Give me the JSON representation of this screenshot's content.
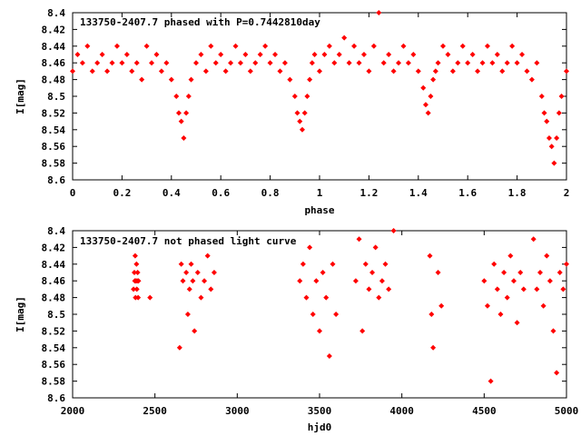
{
  "chart_data": [
    {
      "type": "scatter",
      "title": "133750-2407.7 phased with P=0.7442810day",
      "xlabel": "phase",
      "ylabel": "I[mag]",
      "xlim": [
        0,
        2
      ],
      "ylim": [
        8.6,
        8.4
      ],
      "y_inverted": true,
      "xticks": [
        "0",
        "0.2",
        "0.4",
        "0.6",
        "0.8",
        "1",
        "1.2",
        "1.4",
        "1.6",
        "1.8",
        "2"
      ],
      "yticks": [
        "8.4",
        "8.42",
        "8.44",
        "8.46",
        "8.48",
        "8.5",
        "8.52",
        "8.54",
        "8.56",
        "8.58",
        "8.6"
      ],
      "grid": false,
      "legend": "none",
      "color": "#ff0000",
      "marker": "diamond",
      "series": [
        {
          "x": [
            0.0,
            0.02,
            0.04,
            0.06,
            0.08,
            0.1,
            0.12,
            0.14,
            0.16,
            0.18,
            0.2,
            0.22,
            0.24,
            0.26,
            0.28,
            0.3,
            0.32,
            0.34,
            0.36,
            0.38,
            0.4,
            0.42,
            0.43,
            0.44,
            0.45,
            0.46,
            0.47,
            0.48,
            0.5,
            0.52,
            0.54,
            0.56,
            0.58,
            0.6,
            0.62,
            0.64,
            0.66,
            0.68,
            0.7,
            0.72,
            0.74,
            0.76,
            0.78,
            0.8,
            0.82,
            0.84,
            0.86,
            0.88,
            0.9,
            0.91,
            0.92,
            0.93,
            0.94,
            0.95,
            0.96,
            0.97,
            0.98,
            1.0,
            1.02,
            1.04,
            1.06,
            1.08,
            1.1,
            1.12,
            1.14,
            1.16,
            1.18,
            1.2,
            1.22,
            1.24,
            1.26,
            1.28,
            1.3,
            1.32,
            1.34,
            1.36,
            1.38,
            1.4,
            1.42,
            1.43,
            1.44,
            1.45,
            1.46,
            1.47,
            1.48,
            1.5,
            1.52,
            1.54,
            1.56,
            1.58,
            1.6,
            1.62,
            1.64,
            1.66,
            1.68,
            1.7,
            1.72,
            1.74,
            1.76,
            1.78,
            1.8,
            1.82,
            1.84,
            1.86,
            1.88,
            1.9,
            1.91,
            1.92,
            1.93,
            1.94,
            1.95,
            1.96,
            1.97,
            1.98,
            2.0
          ],
          "y": [
            8.47,
            8.45,
            8.46,
            8.44,
            8.47,
            8.46,
            8.45,
            8.47,
            8.46,
            8.44,
            8.46,
            8.45,
            8.47,
            8.46,
            8.48,
            8.44,
            8.46,
            8.45,
            8.47,
            8.46,
            8.48,
            8.5,
            8.52,
            8.53,
            8.55,
            8.52,
            8.5,
            8.48,
            8.46,
            8.45,
            8.47,
            8.44,
            8.46,
            8.45,
            8.47,
            8.46,
            8.44,
            8.46,
            8.45,
            8.47,
            8.46,
            8.45,
            8.44,
            8.46,
            8.45,
            8.47,
            8.46,
            8.48,
            8.5,
            8.52,
            8.53,
            8.54,
            8.52,
            8.5,
            8.48,
            8.46,
            8.45,
            8.47,
            8.45,
            8.44,
            8.46,
            8.45,
            8.43,
            8.46,
            8.44,
            8.46,
            8.45,
            8.47,
            8.44,
            8.4,
            8.46,
            8.45,
            8.47,
            8.46,
            8.44,
            8.46,
            8.45,
            8.47,
            8.49,
            8.51,
            8.52,
            8.5,
            8.48,
            8.47,
            8.46,
            8.44,
            8.45,
            8.47,
            8.46,
            8.44,
            8.46,
            8.45,
            8.47,
            8.46,
            8.44,
            8.46,
            8.45,
            8.47,
            8.46,
            8.44,
            8.46,
            8.45,
            8.47,
            8.48,
            8.46,
            8.5,
            8.52,
            8.53,
            8.55,
            8.56,
            8.58,
            8.55,
            8.52,
            8.5,
            8.47
          ]
        }
      ]
    },
    {
      "type": "scatter",
      "title": "133750-2407.7 not phased light curve",
      "xlabel": "hjd0",
      "ylabel": "I[mag]",
      "xlim": [
        2000,
        5000
      ],
      "ylim": [
        8.6,
        8.4
      ],
      "y_inverted": true,
      "xticks": [
        "2000",
        "2500",
        "3000",
        "3500",
        "4000",
        "4500",
        "5000"
      ],
      "yticks": [
        "8.4",
        "8.42",
        "8.44",
        "8.46",
        "8.48",
        "8.5",
        "8.52",
        "8.54",
        "8.56",
        "8.58",
        "8.6"
      ],
      "grid": false,
      "legend": "none",
      "color": "#ff0000",
      "marker": "diamond",
      "series": [
        {
          "x": [
            2370,
            2375,
            2378,
            2380,
            2382,
            2385,
            2388,
            2390,
            2392,
            2395,
            2398,
            2400,
            2470,
            2650,
            2660,
            2670,
            2690,
            2700,
            2710,
            2720,
            2730,
            2740,
            2760,
            2780,
            2800,
            2820,
            2840,
            2860,
            3380,
            3400,
            3420,
            3440,
            3460,
            3480,
            3500,
            3520,
            3540,
            3560,
            3580,
            3600,
            3720,
            3740,
            3760,
            3780,
            3800,
            3820,
            3840,
            3860,
            3880,
            3900,
            3920,
            3950,
            4170,
            4180,
            4190,
            4220,
            4240,
            4500,
            4520,
            4540,
            4560,
            4580,
            4600,
            4620,
            4640,
            4660,
            4680,
            4700,
            4720,
            4740,
            4800,
            4820,
            4840,
            4860,
            4880,
            4900,
            4920,
            4940,
            4960,
            4980,
            5000
          ],
          "y": [
            8.47,
            8.45,
            8.46,
            8.43,
            8.48,
            8.46,
            8.44,
            8.47,
            8.46,
            8.45,
            8.48,
            8.46,
            8.48,
            8.54,
            8.44,
            8.46,
            8.45,
            8.5,
            8.47,
            8.44,
            8.46,
            8.52,
            8.45,
            8.48,
            8.46,
            8.43,
            8.47,
            8.45,
            8.46,
            8.44,
            8.48,
            8.42,
            8.5,
            8.46,
            8.52,
            8.45,
            8.48,
            8.55,
            8.44,
            8.5,
            8.46,
            8.41,
            8.52,
            8.44,
            8.47,
            8.45,
            8.42,
            8.48,
            8.46,
            8.44,
            8.47,
            8.4,
            8.43,
            8.5,
            8.54,
            8.45,
            8.49,
            8.46,
            8.49,
            8.58,
            8.44,
            8.47,
            8.5,
            8.45,
            8.48,
            8.43,
            8.46,
            8.51,
            8.45,
            8.47,
            8.41,
            8.47,
            8.45,
            8.49,
            8.43,
            8.46,
            8.52,
            8.57,
            8.45,
            8.47,
            8.44
          ]
        }
      ]
    }
  ]
}
